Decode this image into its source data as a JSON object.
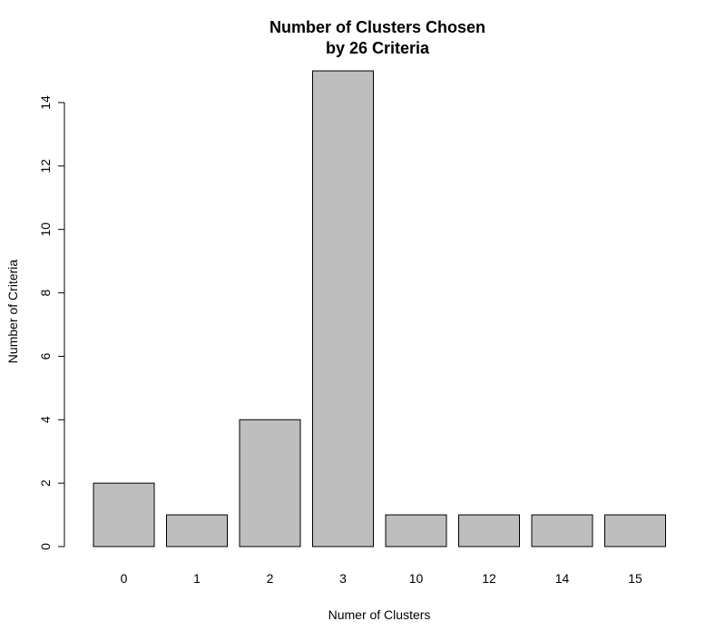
{
  "chart_data": {
    "type": "bar",
    "title_line1": "Number of Clusters Chosen",
    "title_line2": "by 26 Criteria",
    "xlabel": "Numer of Clusters",
    "ylabel": "Number of Criteria",
    "categories": [
      "0",
      "1",
      "2",
      "3",
      "10",
      "12",
      "14",
      "15"
    ],
    "values": [
      2,
      1,
      4,
      15,
      1,
      1,
      1,
      1
    ],
    "ylim": [
      0,
      15
    ],
    "yticks": [
      0,
      2,
      4,
      6,
      8,
      10,
      12,
      14
    ],
    "bar_color": "#bebebe",
    "border_color": "#000000",
    "grid": false
  }
}
